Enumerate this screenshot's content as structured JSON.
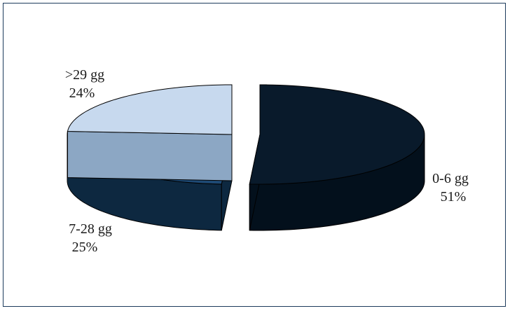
{
  "chart_data": {
    "type": "pie",
    "style": "3d-exploded",
    "slices": [
      {
        "label": "0-6 gg",
        "value": 51,
        "value_label": "51%",
        "color": "#091a2b",
        "side_color": "#03101c"
      },
      {
        "label": "7-28 gg",
        "value": 25,
        "value_label": "25%",
        "color": "#1e4a75",
        "side_color": "#0d2840"
      },
      {
        "label": ">29 gg",
        "value": 24,
        "value_label": "24%",
        "color": "#c7d9ee",
        "side_color": "#8ca7c4"
      }
    ],
    "title": "",
    "legend": "none",
    "frame_color": "#1d3b5c"
  }
}
